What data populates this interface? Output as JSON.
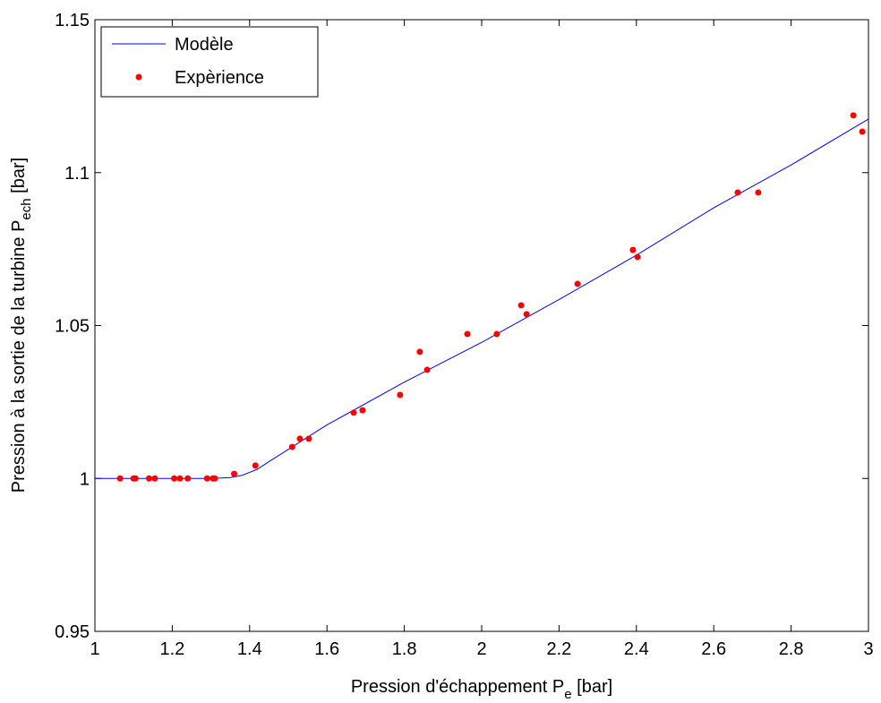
{
  "chart_data": {
    "type": "line",
    "x_label": {
      "text": "Pression d'échappement P",
      "sub": "e",
      "suffix": " [bar]"
    },
    "y_label": {
      "text": "Pression à la sortie de la turbine P",
      "sub": "ech",
      "suffix": " [bar]"
    },
    "xlim": [
      1,
      3
    ],
    "ylim": [
      0.95,
      1.15
    ],
    "xticks": [
      1,
      1.2,
      1.4,
      1.6,
      1.8,
      2,
      2.2,
      2.4,
      2.6,
      2.8,
      3
    ],
    "yticks": [
      0.95,
      1,
      1.05,
      1.1,
      1.15
    ],
    "grid": false,
    "legend_position": "upper-left",
    "series": [
      {
        "name": "Modèle",
        "type": "line",
        "color": "#0000ff",
        "x": [
          1,
          1.1,
          1.2,
          1.3,
          1.35,
          1.38,
          1.4,
          1.42,
          1.45,
          1.5,
          1.6,
          1.8,
          2,
          2.2,
          2.4,
          2.6,
          2.8,
          3
        ],
        "values": [
          1,
          1,
          1,
          1,
          1.0003,
          1.001,
          1.002,
          1.003,
          1.0055,
          1.0095,
          1.0175,
          1.0315,
          1.0445,
          1.0585,
          1.073,
          1.0885,
          1.1025,
          1.1175
        ]
      },
      {
        "name": "Expèrience",
        "type": "scatter",
        "color": "#ff0000",
        "x": [
          1.065,
          1.1,
          1.105,
          1.14,
          1.155,
          1.205,
          1.22,
          1.24,
          1.29,
          1.305,
          1.31,
          1.36,
          1.415,
          1.51,
          1.53,
          1.553,
          1.669,
          1.692,
          1.789,
          1.84,
          1.859,
          1.963,
          2.039,
          2.102,
          2.116,
          2.248,
          2.391,
          2.403,
          2.662,
          2.715,
          2.961,
          2.984
        ],
        "values": [
          1,
          1,
          1,
          1,
          1,
          1,
          1,
          1,
          1,
          1,
          1,
          1.0015,
          1.0042,
          1.0103,
          1.013,
          1.013,
          1.0215,
          1.0223,
          1.0273,
          1.0414,
          1.0355,
          1.0472,
          1.0472,
          1.0566,
          1.0537,
          1.0636,
          1.0747,
          1.0724,
          1.0935,
          1.0935,
          1.1187,
          1.1134
        ]
      }
    ]
  }
}
